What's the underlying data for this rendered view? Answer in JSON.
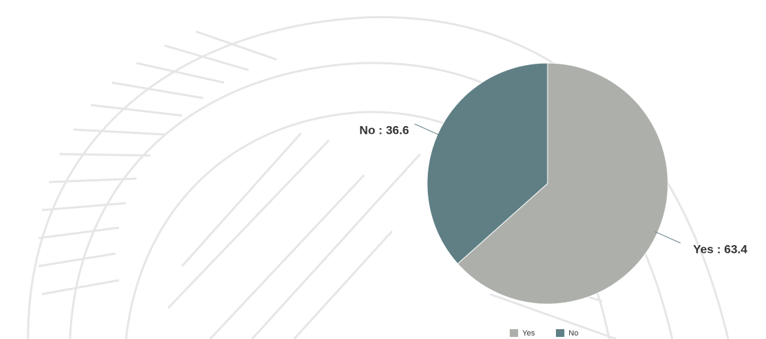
{
  "chart_data": {
    "type": "pie",
    "categories": [
      "Yes",
      "No"
    ],
    "values": [
      63.4,
      36.6
    ],
    "value_labels": [
      "Yes : 63.4",
      "No : 36.6"
    ],
    "colors": [
      "#adb0aa",
      "#5f7f85"
    ],
    "legend": "bottom"
  }
}
